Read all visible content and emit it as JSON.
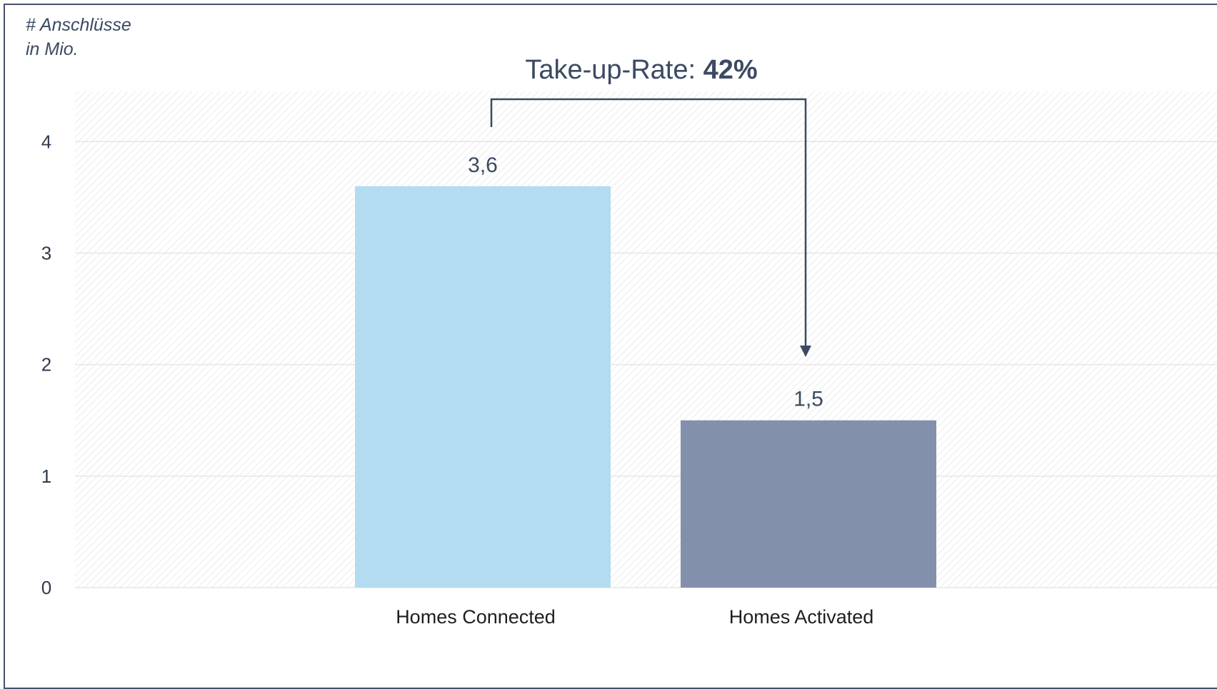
{
  "chart_data": {
    "type": "bar",
    "ylabel_line1": "# Anschlüsse",
    "ylabel_line2": "in Mio.",
    "categories": [
      "Homes Connected",
      "Homes Activated"
    ],
    "values": [
      3.6,
      1.5
    ],
    "value_labels": [
      "3,6",
      "1,5"
    ],
    "ylim": [
      0,
      4.45
    ],
    "yticks": [
      0,
      1,
      2,
      3,
      4
    ],
    "grid": true,
    "colors": [
      "#b3dcf0",
      "#8390ab"
    ],
    "annotation": {
      "label": "Take-up-Rate: ",
      "value": "42%",
      "from_category": "Homes Connected",
      "to_category": "Homes Activated"
    }
  }
}
